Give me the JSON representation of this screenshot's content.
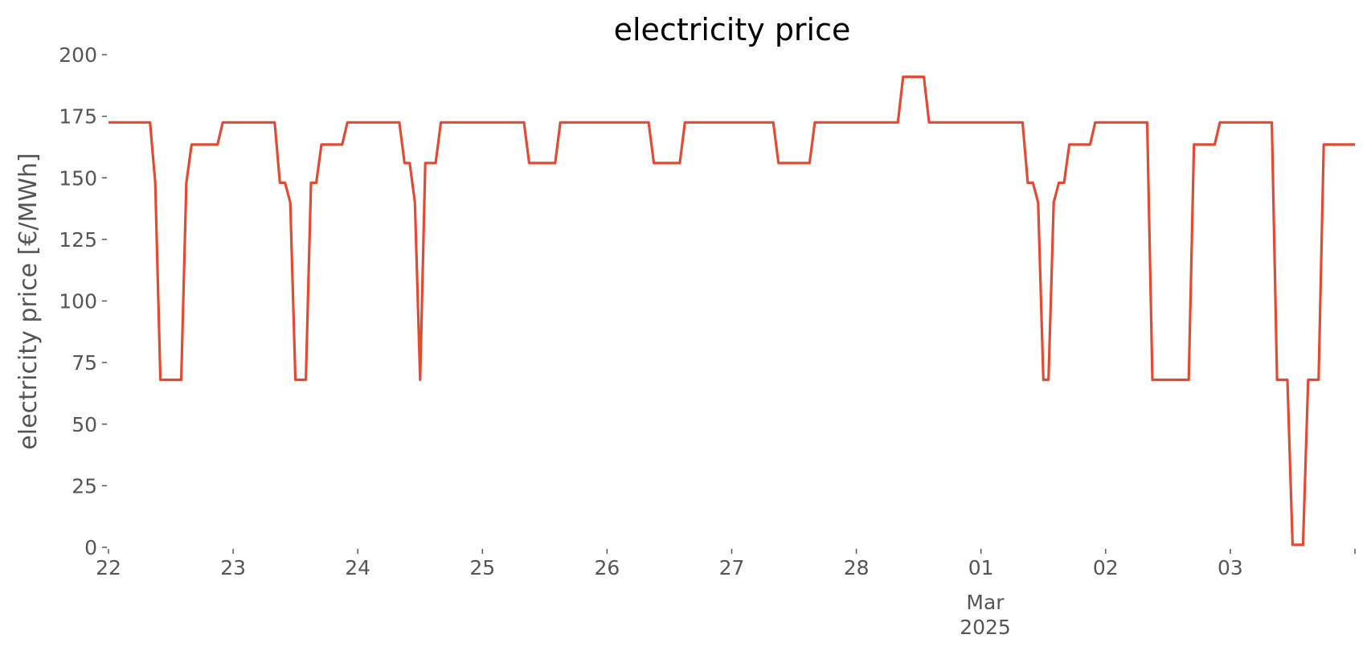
{
  "chart_data": {
    "type": "line",
    "title": "electricity price",
    "xlabel": "",
    "ylabel": "electricity price [€/MWh]",
    "ylim": [
      0,
      200
    ],
    "yticks": [
      0,
      25,
      50,
      75,
      100,
      125,
      150,
      175,
      200
    ],
    "xlim": [
      "2025-02-22 00:00",
      "2025-03-04 00:00"
    ],
    "xticks": [
      {
        "x": "2025-02-22 00:00",
        "label": "22"
      },
      {
        "x": "2025-02-23 00:00",
        "label": "23"
      },
      {
        "x": "2025-02-24 00:00",
        "label": "24"
      },
      {
        "x": "2025-02-25 00:00",
        "label": "25"
      },
      {
        "x": "2025-02-26 00:00",
        "label": "26"
      },
      {
        "x": "2025-02-27 00:00",
        "label": "27"
      },
      {
        "x": "2025-02-28 00:00",
        "label": "28"
      },
      {
        "x": "2025-03-01 00:00",
        "label": "01"
      },
      {
        "x": "2025-03-02 00:00",
        "label": "02"
      },
      {
        "x": "2025-03-03 00:00",
        "label": "03"
      },
      {
        "x": "2025-03-04 00:00",
        "label": ""
      }
    ],
    "month_label": "Mar",
    "year_label": "2025",
    "grid": false,
    "legend": "none",
    "series": [
      {
        "color": "#e24a33",
        "x": [
          "2025-02-22 00:00",
          "2025-02-22 08:00",
          "2025-02-22 09:00",
          "2025-02-22 10:00",
          "2025-02-22 14:00",
          "2025-02-22 15:00",
          "2025-02-22 16:00",
          "2025-02-22 21:00",
          "2025-02-22 22:00",
          "2025-02-23 08:00",
          "2025-02-23 09:00",
          "2025-02-23 10:00",
          "2025-02-23 11:00",
          "2025-02-23 12:00",
          "2025-02-23 14:00",
          "2025-02-23 15:00",
          "2025-02-23 16:00",
          "2025-02-23 17:00",
          "2025-02-23 21:00",
          "2025-02-23 22:00",
          "2025-02-24 08:00",
          "2025-02-24 09:00",
          "2025-02-24 10:00",
          "2025-02-24 11:00",
          "2025-02-24 12:00",
          "2025-02-24 13:00",
          "2025-02-24 15:00",
          "2025-02-24 16:00",
          "2025-02-25 08:00",
          "2025-02-25 09:00",
          "2025-02-25 14:00",
          "2025-02-25 15:00",
          "2025-02-26 08:00",
          "2025-02-26 09:00",
          "2025-02-26 14:00",
          "2025-02-26 15:00",
          "2025-02-27 08:00",
          "2025-02-27 09:00",
          "2025-02-27 15:00",
          "2025-02-27 16:00",
          "2025-02-28 08:00",
          "2025-02-28 09:00",
          "2025-02-28 13:00",
          "2025-02-28 14:00",
          "2025-03-01 08:00",
          "2025-03-01 09:00",
          "2025-03-01 10:00",
          "2025-03-01 11:00",
          "2025-03-01 12:00",
          "2025-03-01 13:00",
          "2025-03-01 14:00",
          "2025-03-01 15:00",
          "2025-03-01 16:00",
          "2025-03-01 17:00",
          "2025-03-01 21:00",
          "2025-03-01 22:00",
          "2025-03-02 08:00",
          "2025-03-02 09:00",
          "2025-03-02 16:00",
          "2025-03-02 17:00",
          "2025-03-02 21:00",
          "2025-03-02 22:00",
          "2025-03-03 08:00",
          "2025-03-03 09:00",
          "2025-03-03 11:00",
          "2025-03-03 12:00",
          "2025-03-03 14:00",
          "2025-03-03 15:00",
          "2025-03-03 17:00",
          "2025-03-03 18:00",
          "2025-03-04 00:00"
        ],
        "values": [
          172.5,
          172.5,
          148,
          68,
          68,
          148,
          163.5,
          163.5,
          172.5,
          172.5,
          148,
          148,
          140,
          68,
          68,
          148,
          148,
          163.5,
          163.5,
          172.5,
          172.5,
          156,
          156,
          140,
          68,
          156,
          156,
          172.5,
          172.5,
          156,
          156,
          172.5,
          172.5,
          156,
          156,
          172.5,
          172.5,
          156,
          156,
          172.5,
          172.5,
          191,
          191,
          172.5,
          172.5,
          148,
          148,
          140,
          68,
          68,
          140,
          148,
          148,
          163.5,
          163.5,
          172.5,
          172.5,
          68,
          68,
          163.5,
          163.5,
          172.5,
          172.5,
          68,
          68,
          1,
          1,
          68,
          68,
          163.5,
          163.5
        ]
      }
    ]
  }
}
